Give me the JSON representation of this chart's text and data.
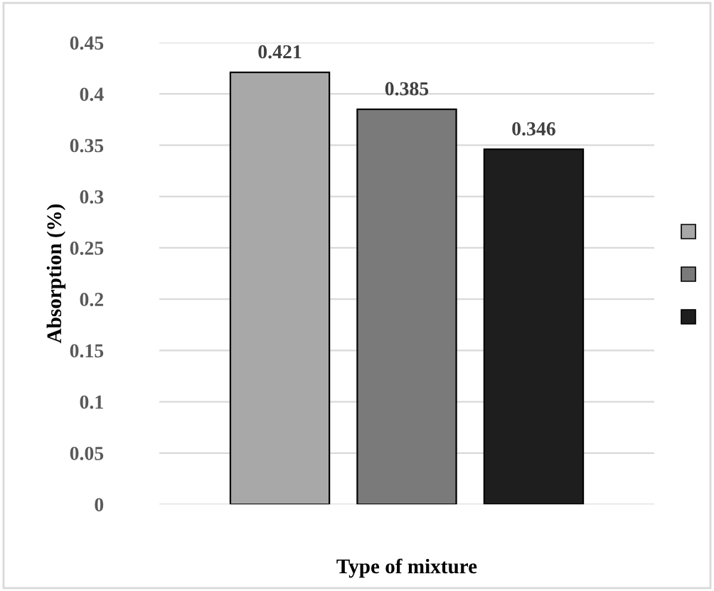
{
  "chart_data": {
    "type": "bar",
    "xlabel": "Type of mixture",
    "ylabel": "Absorption (%)",
    "categories": [
      null,
      null,
      null
    ],
    "values": [
      0.421,
      0.385,
      0.346
    ],
    "colors": [
      "#a8a8a8",
      "#7a7a7a",
      "#1e1e1e"
    ],
    "ylim": [
      0,
      0.45
    ],
    "yticks": [
      0,
      {
        "value": 0.05,
        "label": "0.05"
      },
      {
        "value": 0.1,
        "label": "0.1"
      },
      {
        "value": 0.15,
        "label": "0.15"
      },
      {
        "value": 0.2,
        "label": "0.2"
      },
      {
        "value": 0.25,
        "label": "0.25"
      },
      {
        "value": 0.3,
        "label": "0.3"
      },
      {
        "value": 0.35,
        "label": "0.35"
      },
      {
        "value": 0.4,
        "label": "0.4"
      },
      {
        "value": 0.45,
        "label": "0.45"
      }
    ],
    "grid": "y",
    "data_labels": true
  }
}
